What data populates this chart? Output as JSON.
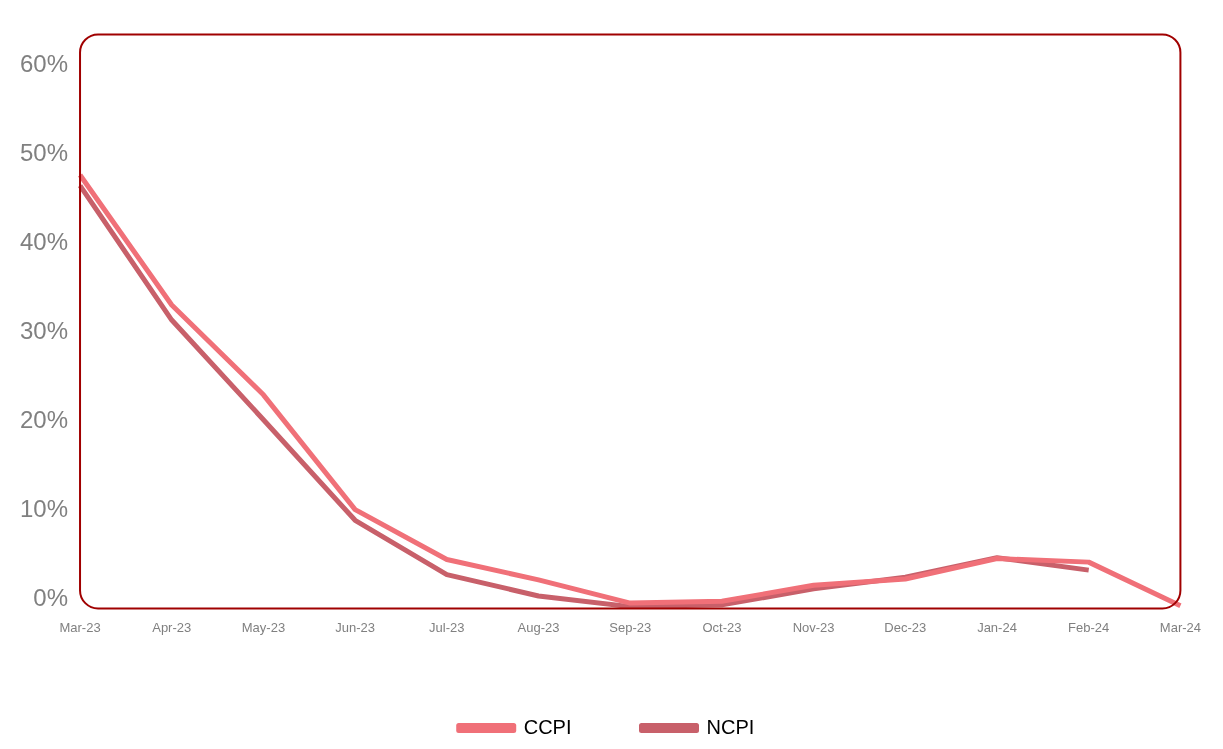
{
  "chart_data": {
    "type": "line",
    "categories": [
      "Mar-23",
      "Apr-23",
      "May-23",
      "Jun-23",
      "Jul-23",
      "Aug-23",
      "Sep-23",
      "Oct-23",
      "Nov-23",
      "Dec-23",
      "Jan-24",
      "Feb-24",
      "Mar-24"
    ],
    "series": [
      {
        "name": "CCPI",
        "color": "#f07078",
        "values": [
          47.7,
          33.1,
          23.0,
          10.1,
          4.5,
          2.2,
          -0.4,
          -0.2,
          1.6,
          2.3,
          4.6,
          4.2,
          -0.7
        ]
      },
      {
        "name": "NCPI",
        "color": "#c8606a",
        "values": [
          46.5,
          31.4,
          20.2,
          8.9,
          2.8,
          0.4,
          -0.8,
          -0.6,
          1.2,
          2.5,
          4.7,
          3.3,
          null
        ]
      }
    ],
    "ylim": [
      -1,
      63.5
    ],
    "yticks": [
      {
        "value": 0,
        "label": "0%"
      },
      {
        "value": 10,
        "label": "10%"
      },
      {
        "value": 20,
        "label": "20%"
      },
      {
        "value": 30,
        "label": "30%"
      },
      {
        "value": 40,
        "label": "40%"
      },
      {
        "value": 50,
        "label": "50%"
      },
      {
        "value": 60,
        "label": "60%"
      }
    ],
    "grid": false,
    "legend": "bottom",
    "marker": "none",
    "line_style": "solid"
  }
}
